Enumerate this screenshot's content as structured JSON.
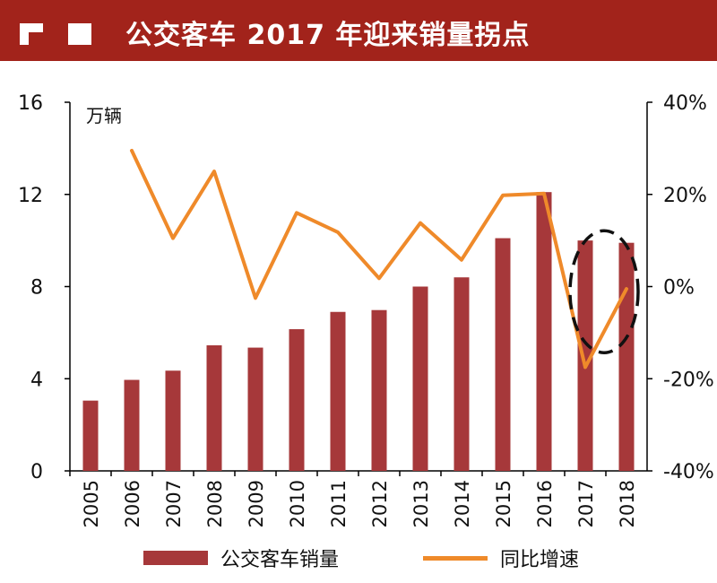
{
  "header": {
    "title": "公交客车 2017 年迎来销量拐点"
  },
  "colors": {
    "header_bg": "#a2231b",
    "bar": "#a6383a",
    "line": "#ef8a2a",
    "annotation": "#111111"
  },
  "chart_data": {
    "type": "bar",
    "title": "公交客车 2017 年迎来销量拐点",
    "categories": [
      "2005",
      "2006",
      "2007",
      "2008",
      "2009",
      "2010",
      "2011",
      "2012",
      "2013",
      "2014",
      "2015",
      "2016",
      "2017",
      "2018"
    ],
    "unit_label": "万辆",
    "left_axis": {
      "ylim": [
        0,
        16
      ],
      "ticks": [
        "0",
        "4",
        "8",
        "12",
        "16"
      ]
    },
    "right_axis": {
      "ylim": [
        -40,
        40
      ],
      "ticks": [
        "-40%",
        "-20%",
        "0%",
        "20%",
        "40%"
      ]
    },
    "series": [
      {
        "name": "公交客车销量",
        "type": "bar",
        "axis": "left",
        "values": [
          3.05,
          3.95,
          4.35,
          5.45,
          5.35,
          6.15,
          6.9,
          6.98,
          8.0,
          8.4,
          10.1,
          12.1,
          10.0,
          9.9
        ]
      },
      {
        "name": "同比增速",
        "type": "line",
        "axis": "right",
        "values": [
          null,
          29.5,
          10.5,
          25.0,
          -2.5,
          16.0,
          11.8,
          1.8,
          13.8,
          5.8,
          19.8,
          20.2,
          -17.5,
          -0.5
        ]
      }
    ],
    "annotation": {
      "shape": "dashed-ellipse",
      "target": [
        "2017",
        "2018"
      ]
    },
    "legend_position": "bottom"
  }
}
